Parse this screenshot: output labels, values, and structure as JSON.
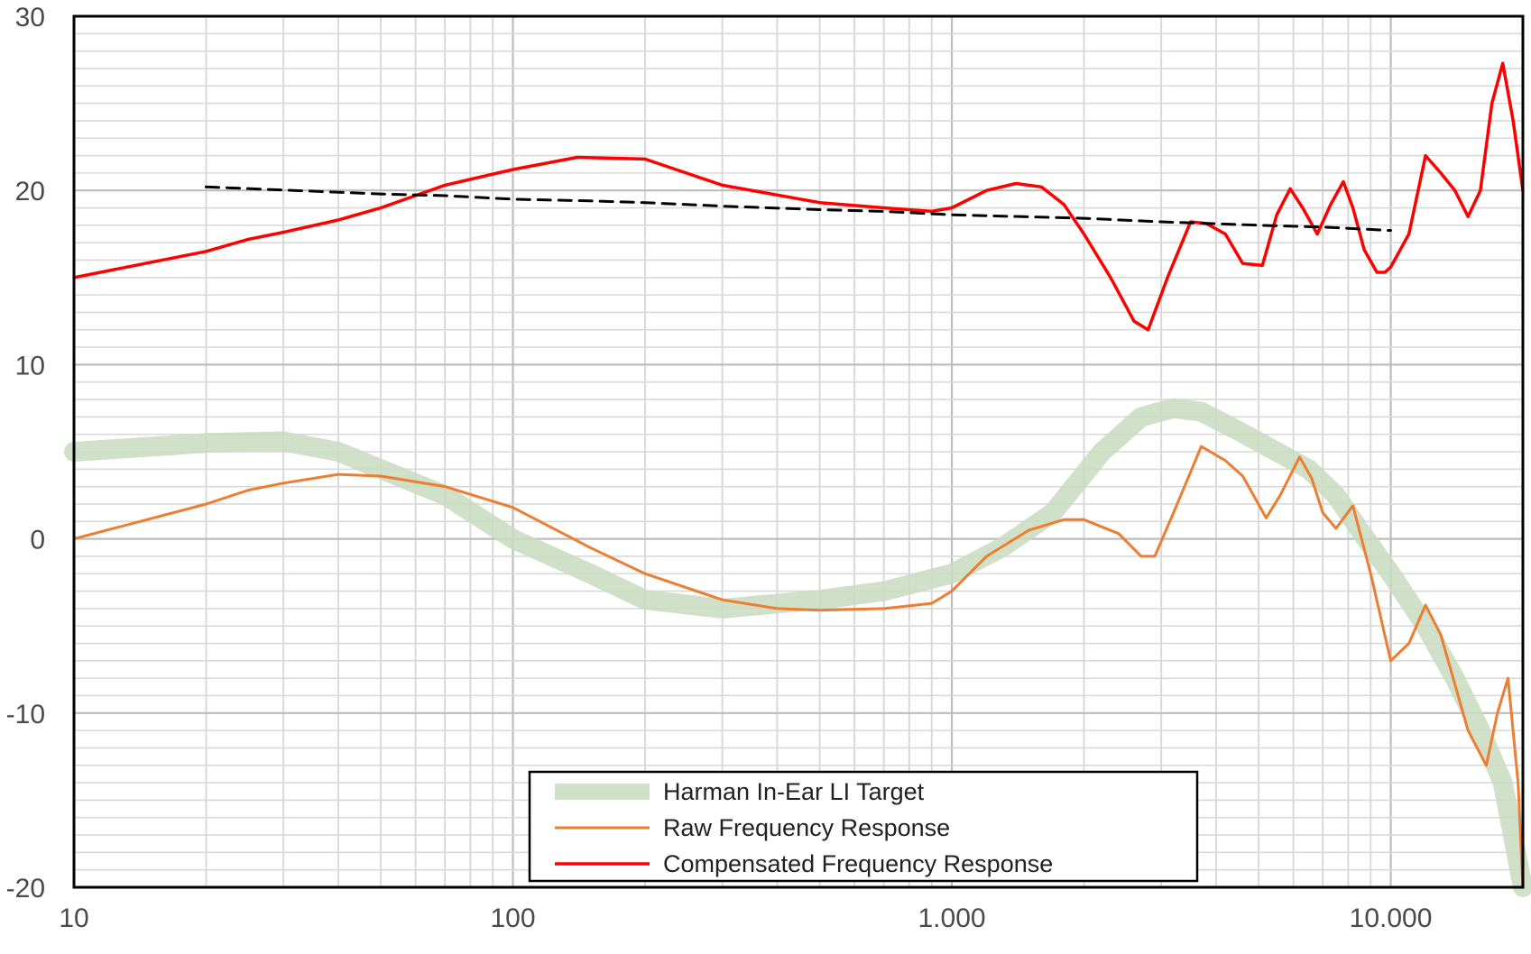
{
  "chart_data": {
    "type": "line",
    "title": "",
    "xlabel": "",
    "ylabel": "",
    "x_scale": "log",
    "xlim": [
      10,
      20000
    ],
    "ylim": [
      -20,
      30
    ],
    "x_ticks": [
      10,
      100,
      1000,
      10000
    ],
    "x_tick_labels": [
      "10",
      "100",
      "1.000",
      "10.000"
    ],
    "y_ticks": [
      -20,
      -10,
      0,
      10,
      20,
      30
    ],
    "y_tick_labels": [
      "-20",
      "-10",
      "0",
      "10",
      "20",
      "30"
    ],
    "grid": true,
    "legend_position": "bottom-center",
    "legend": [
      {
        "label": "Harman In-Ear LI Target",
        "color": "#c9dcc0"
      },
      {
        "label": "Raw Frequency Response",
        "color": "#ed7d31"
      },
      {
        "label": "Compensated Frequency Response",
        "color": "#ff0000"
      }
    ],
    "series": [
      {
        "name": "Harman In-Ear LI Target",
        "color": "#c9dcc0",
        "x": [
          10,
          20,
          30,
          40,
          50,
          70,
          100,
          150,
          200,
          300,
          500,
          700,
          1000,
          1300,
          1700,
          2200,
          2700,
          3200,
          3700,
          4500,
          5500,
          6500,
          7500,
          8500,
          10000,
          12000,
          14000,
          16000,
          18000,
          20000
        ],
        "y": [
          5,
          5.5,
          5.6,
          5,
          4,
          2.5,
          0,
          -2,
          -3.5,
          -4,
          -3.5,
          -3,
          -2,
          -0.5,
          1.5,
          5,
          7,
          7.5,
          7.3,
          6.2,
          5,
          4,
          2.5,
          0.5,
          -2,
          -5,
          -8,
          -11,
          -14,
          -20
        ]
      },
      {
        "name": "Raw Frequency Response",
        "color": "#ed7d31",
        "x": [
          10,
          20,
          25,
          30,
          40,
          50,
          70,
          100,
          150,
          200,
          300,
          400,
          500,
          700,
          900,
          1000,
          1200,
          1500,
          1800,
          2000,
          2400,
          2700,
          2900,
          3200,
          3700,
          4200,
          4600,
          5200,
          5600,
          6200,
          6600,
          7000,
          7500,
          8200,
          9000,
          10000,
          11000,
          12000,
          13000,
          15000,
          16500,
          17500,
          18500,
          19500,
          20000
        ],
        "y": [
          0,
          2,
          2.8,
          3.2,
          3.7,
          3.6,
          3,
          1.8,
          -0.5,
          -2,
          -3.5,
          -4,
          -4.1,
          -4,
          -3.7,
          -3,
          -1,
          0.5,
          1.1,
          1.1,
          0.3,
          -1,
          -1,
          1.5,
          5.3,
          4.5,
          3.6,
          1.2,
          2.5,
          4.7,
          3.5,
          1.5,
          0.6,
          1.9,
          -2,
          -7,
          -6,
          -3.8,
          -5.5,
          -11,
          -13,
          -10,
          -8,
          -14,
          -20
        ]
      },
      {
        "name": "Compensated Frequency Response",
        "color": "#ff0000",
        "x": [
          10,
          20,
          25,
          30,
          40,
          50,
          70,
          100,
          140,
          200,
          300,
          500,
          700,
          900,
          1000,
          1200,
          1400,
          1600,
          1800,
          2000,
          2300,
          2600,
          2800,
          3100,
          3500,
          3800,
          4200,
          4600,
          5100,
          5500,
          5900,
          6300,
          6800,
          7300,
          7800,
          8200,
          8700,
          9300,
          9700,
          10000,
          11000,
          12000,
          13000,
          14000,
          15000,
          16000,
          17000,
          18000,
          19000,
          20000
        ],
        "y": [
          15,
          16.5,
          17.2,
          17.6,
          18.3,
          19,
          20.3,
          21.2,
          21.9,
          21.8,
          20.3,
          19.3,
          19,
          18.8,
          19,
          20,
          20.4,
          20.2,
          19.2,
          17.5,
          15,
          12.5,
          12,
          15,
          18.2,
          18.1,
          17.5,
          15.8,
          15.7,
          18.6,
          20.1,
          19,
          17.5,
          19.2,
          20.5,
          19,
          16.6,
          15.3,
          15.3,
          15.6,
          17.5,
          22,
          21,
          20,
          18.5,
          20,
          25,
          27.3,
          24,
          20
        ]
      },
      {
        "name": "",
        "color": "#000000",
        "style": "dashed",
        "x": [
          20,
          50,
          70,
          100,
          150,
          200,
          300,
          500,
          700,
          1000,
          2000,
          3000,
          5000,
          7000,
          10000
        ],
        "y": [
          20.2,
          19.8,
          19.7,
          19.5,
          19.4,
          19.3,
          19.1,
          18.9,
          18.8,
          18.6,
          18.4,
          18.2,
          18.0,
          17.9,
          17.7
        ]
      }
    ]
  }
}
